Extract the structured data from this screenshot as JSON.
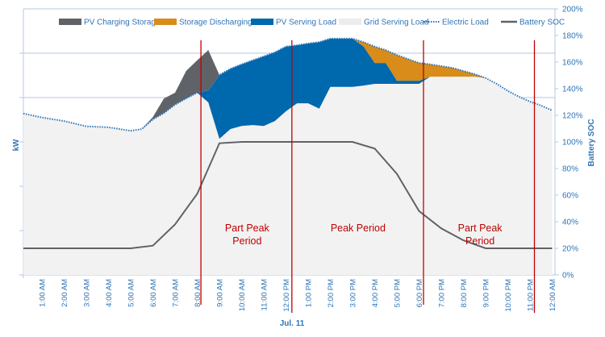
{
  "chart_data": {
    "type": "area",
    "xlabel": "Jul. 11",
    "ylabel_left": "kW",
    "ylabel_right": "Battery SOC",
    "left_axis_ticks_labeled": false,
    "ylim_left": [
      0,
      6
    ],
    "ylim_right": [
      0,
      200
    ],
    "right_ticks": [
      "0%",
      "20%",
      "40%",
      "60%",
      "80%",
      "100%",
      "120%",
      "140%",
      "160%",
      "180%",
      "200%"
    ],
    "x_tick_labels": [
      "1:00 AM",
      "2:00 AM",
      "3:00 AM",
      "4:00 AM",
      "5:00 AM",
      "6:00 AM",
      "7:00 AM",
      "8:00 AM",
      "9:00 AM",
      "10:00 AM",
      "11:00 AM",
      "12:00 PM",
      "1:00 PM",
      "2:00 PM",
      "3:00 PM",
      "4:00 PM",
      "5:00 PM",
      "6:00 PM",
      "7:00 PM",
      "8:00 PM",
      "9:00 PM",
      "10:00 PM",
      "11:00 PM",
      "12:00 AM"
    ],
    "grid": "horizontal",
    "legend_position": "top",
    "legend": [
      "PV Charging Storage",
      "Storage Discharging",
      "PV Serving Load",
      "Grid Serving Load",
      "Electric Load",
      "Battery SOC"
    ],
    "colors": {
      "pv_charging": "#5f6368",
      "storage_discharging": "#d98c1a",
      "pv_serving": "#0068ad",
      "grid_serving": "#f2f2f2",
      "electric_load": "#2e75b6",
      "soc": "#5f6368",
      "period_line": "#c00000"
    },
    "x": [
      "00:00",
      "01:00",
      "02:00",
      "03:00",
      "04:00",
      "05:00",
      "05:30",
      "06:00",
      "06:30",
      "07:00",
      "07:30",
      "08:00",
      "08:30",
      "09:00",
      "09:30",
      "10:00",
      "10:30",
      "11:00",
      "11:30",
      "12:00",
      "12:30",
      "13:00",
      "13:30",
      "14:00",
      "14:30",
      "15:00",
      "15:30",
      "16:00",
      "16:30",
      "17:00",
      "17:30",
      "18:00",
      "18:30",
      "19:00",
      "19:30",
      "20:00",
      "20:30",
      "21:00",
      "21:30",
      "22:00",
      "22:30",
      "23:00",
      "23:30",
      "24:00"
    ],
    "electric_load_kw": [
      3.64,
      3.55,
      3.47,
      3.35,
      3.33,
      3.25,
      3.29,
      3.51,
      3.65,
      3.84,
      3.98,
      4.11,
      4.16,
      4.51,
      4.65,
      4.75,
      4.84,
      4.93,
      5.02,
      5.15,
      5.18,
      5.22,
      5.25,
      5.33,
      5.33,
      5.33,
      5.25,
      5.15,
      5.07,
      4.96,
      4.87,
      4.78,
      4.75,
      4.71,
      4.67,
      4.6,
      4.53,
      4.44,
      4.31,
      4.15,
      4.02,
      3.91,
      3.82,
      3.71
    ],
    "grid_serving_top_kw": [
      null,
      null,
      null,
      null,
      null,
      null,
      null,
      null,
      null,
      null,
      null,
      null,
      3.89,
      3.07,
      3.29,
      3.36,
      3.38,
      3.36,
      3.47,
      3.69,
      3.87,
      3.87,
      3.75,
      4.24,
      4.24,
      4.24,
      4.27,
      4.31,
      4.31,
      4.31,
      4.31,
      4.31,
      4.47,
      4.47,
      4.47,
      4.47,
      4.47,
      null,
      null,
      null,
      null,
      null,
      null,
      null
    ],
    "pv_serving_top_kw": [
      null,
      null,
      null,
      null,
      null,
      null,
      null,
      null,
      null,
      null,
      null,
      null,
      null,
      null,
      null,
      null,
      null,
      null,
      null,
      null,
      null,
      null,
      null,
      null,
      null,
      null,
      5.15,
      4.78,
      4.78,
      4.38,
      4.38,
      4.38,
      4.47,
      4.47,
      4.47,
      4.47,
      4.47,
      null,
      null,
      null,
      null,
      null,
      null,
      null
    ],
    "pv_charging_top_kw": [
      null,
      null,
      null,
      null,
      null,
      null,
      null,
      3.56,
      3.98,
      4.11,
      4.6,
      4.84,
      5.07,
      null,
      null,
      null,
      null,
      null,
      null,
      null,
      null,
      null,
      null,
      null,
      null,
      null,
      null,
      null,
      null,
      null,
      null,
      null,
      null,
      null,
      null,
      null,
      null,
      null,
      null,
      null,
      null,
      null,
      null,
      null
    ],
    "soc_x": [
      "00:00",
      "01:00",
      "02:00",
      "03:00",
      "04:00",
      "05:00",
      "06:00",
      "07:00",
      "08:00",
      "09:00",
      "10:00",
      "11:00",
      "12:00",
      "13:00",
      "14:00",
      "15:00",
      "16:00",
      "17:00",
      "18:00",
      "19:00",
      "20:00",
      "21:00",
      "22:00",
      "23:00",
      "24:00"
    ],
    "battery_soc_pct": [
      20,
      20,
      20,
      20,
      20,
      20,
      22,
      38,
      61,
      99,
      100,
      100,
      100,
      100,
      100,
      100,
      95,
      76,
      48,
      35,
      26,
      20,
      20,
      20,
      20
    ],
    "period_boundaries": [
      "08:10",
      "12:16",
      "18:12",
      "23:12"
    ],
    "period_labels": [
      {
        "line1": "Part Peak",
        "line2": "Period",
        "center": "10:15"
      },
      {
        "line1": "Peak Period",
        "line2": "",
        "center": "15:15"
      },
      {
        "line1": "Part Peak",
        "line2": "Period",
        "center": "20:45"
      }
    ]
  }
}
